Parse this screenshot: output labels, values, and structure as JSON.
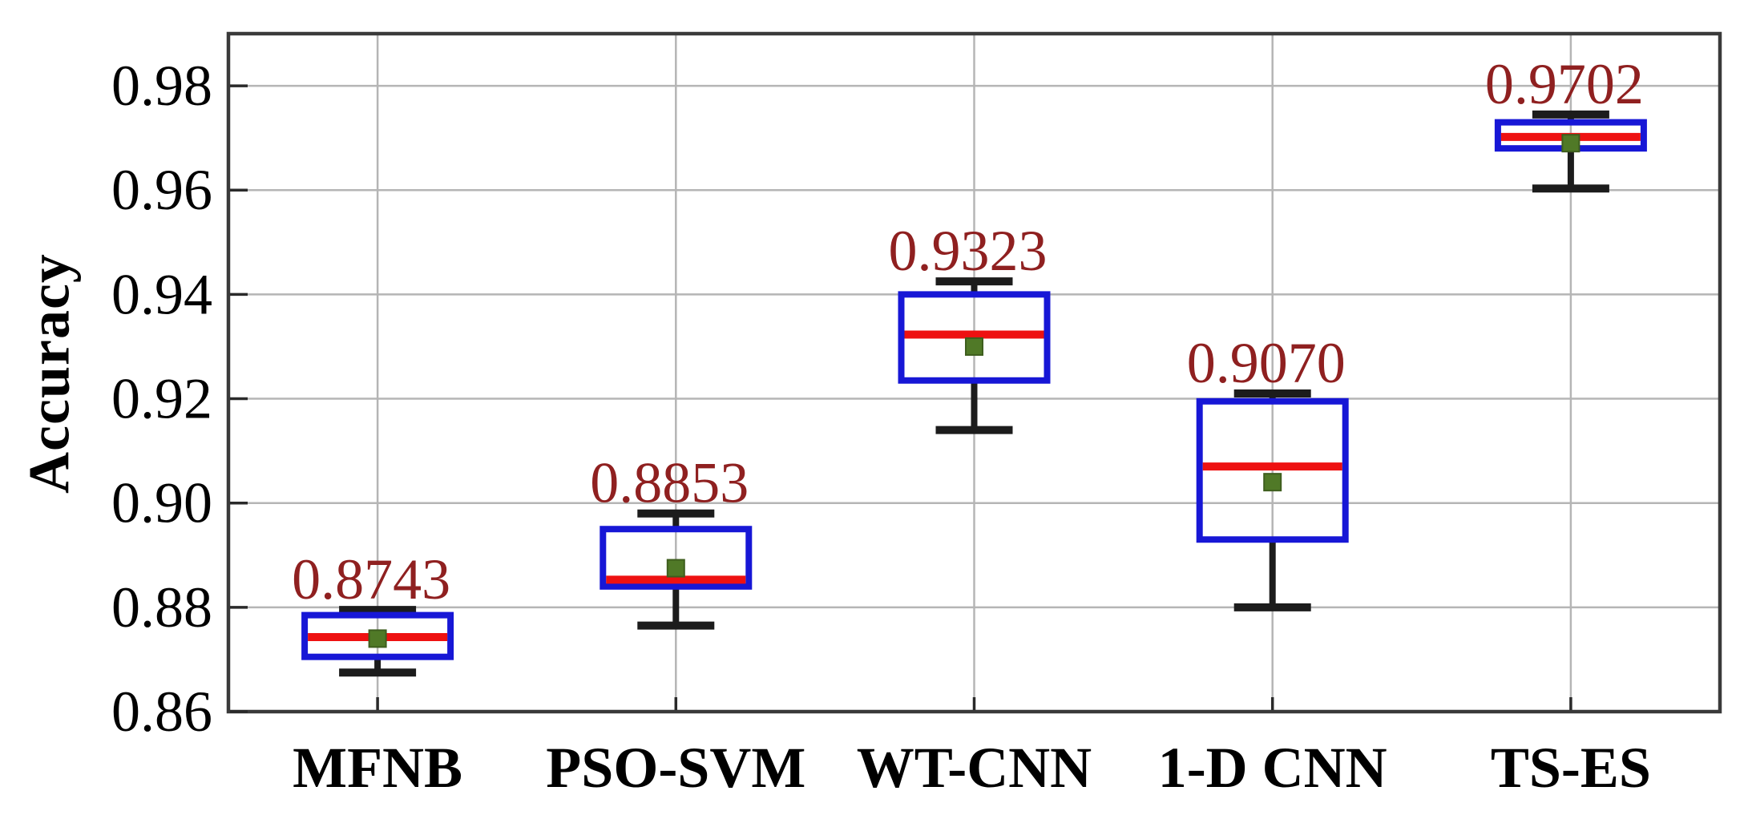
{
  "chart_data": {
    "type": "boxplot",
    "title": "",
    "xlabel": "",
    "ylabel": "Accuracy",
    "categories": [
      "MFNB",
      "PSO-SVM",
      "WT-CNN",
      "1-D CNN",
      "TS-ES"
    ],
    "ylim": [
      0.86,
      0.99
    ],
    "y_ticks": [
      {
        "v": 0.86,
        "label": "0.86"
      },
      {
        "v": 0.88,
        "label": "0.88"
      },
      {
        "v": 0.9,
        "label": "0.90"
      },
      {
        "v": 0.92,
        "label": "0.92"
      },
      {
        "v": 0.94,
        "label": "0.94"
      },
      {
        "v": 0.96,
        "label": "0.96"
      },
      {
        "v": 0.98,
        "label": "0.98"
      }
    ],
    "grid": true,
    "legend": "none",
    "series": [
      {
        "category": "MFNB",
        "annotation": "0.8743",
        "whisker_low": 0.8675,
        "q1": 0.8705,
        "median": 0.8743,
        "q3": 0.8785,
        "whisker_high": 0.8795,
        "mean": 0.874
      },
      {
        "category": "PSO-SVM",
        "annotation": "0.8853",
        "whisker_low": 0.8765,
        "q1": 0.884,
        "median": 0.8853,
        "q3": 0.895,
        "whisker_high": 0.898,
        "mean": 0.8875
      },
      {
        "category": "WT-CNN",
        "annotation": "0.9323",
        "whisker_low": 0.914,
        "q1": 0.9235,
        "median": 0.9323,
        "q3": 0.94,
        "whisker_high": 0.9425,
        "mean": 0.93
      },
      {
        "category": "1-D CNN",
        "annotation": "0.9070",
        "whisker_low": 0.88,
        "q1": 0.893,
        "median": 0.907,
        "q3": 0.9195,
        "whisker_high": 0.921,
        "mean": 0.904
      },
      {
        "category": "TS-ES",
        "annotation": "0.9702",
        "whisker_low": 0.9603,
        "q1": 0.968,
        "median": 0.9702,
        "q3": 0.973,
        "whisker_high": 0.9745,
        "mean": 0.969
      }
    ],
    "colors": {
      "box_edge": "#1717d6",
      "median": "#ee1111",
      "whisker": "#1c1c1c",
      "mean_marker": "#507927",
      "mean_marker_edge": "#3e5e1e",
      "annotation": "#8f2020",
      "grid": "#b5b5b5",
      "axis_border": "#3a3a3a",
      "tick": "#2a2a2a",
      "text": "#000000"
    }
  }
}
